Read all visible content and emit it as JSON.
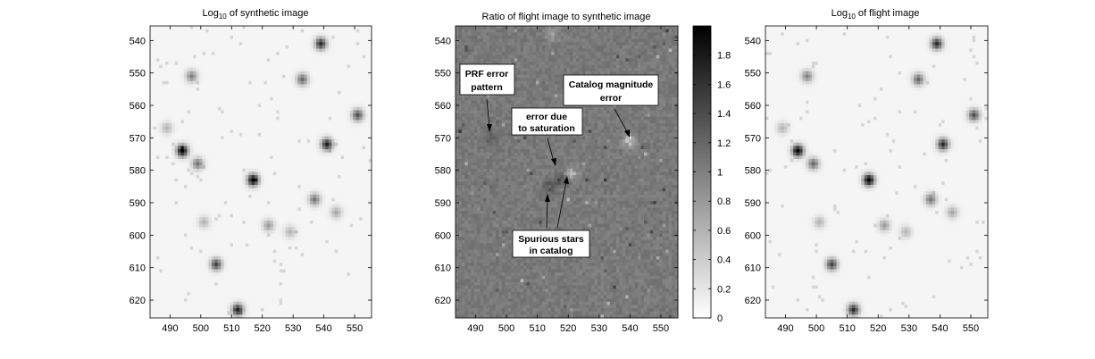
{
  "chart_data": [
    {
      "type": "heatmap",
      "title_main": "Log",
      "title_sub": "10",
      "title_rest": " of synthetic image",
      "xlim": [
        483.5,
        555.5
      ],
      "ylim": [
        535.5,
        625.5
      ],
      "y_reversed": true,
      "x_ticks": [
        "490",
        "500",
        "510",
        "520",
        "530",
        "540",
        "550"
      ],
      "y_ticks": [
        "540",
        "550",
        "560",
        "570",
        "580",
        "590",
        "600",
        "610",
        "620"
      ],
      "colormap": "gray_reversed",
      "background_level": 0.04,
      "stars": [
        {
          "x": 494,
          "y": 574,
          "peak": 1.0
        },
        {
          "x": 517,
          "y": 583,
          "peak": 1.0
        },
        {
          "x": 541,
          "y": 572,
          "peak": 0.85
        },
        {
          "x": 539,
          "y": 541,
          "peak": 0.8
        },
        {
          "x": 512,
          "y": 623,
          "peak": 0.85
        },
        {
          "x": 505,
          "y": 609,
          "peak": 0.7
        },
        {
          "x": 551,
          "y": 563,
          "peak": 0.65
        },
        {
          "x": 533,
          "y": 552,
          "peak": 0.55
        },
        {
          "x": 499,
          "y": 578,
          "peak": 0.5
        },
        {
          "x": 497,
          "y": 551,
          "peak": 0.45
        },
        {
          "x": 537,
          "y": 589,
          "peak": 0.5
        },
        {
          "x": 522,
          "y": 597,
          "peak": 0.35
        },
        {
          "x": 544,
          "y": 593,
          "peak": 0.3
        },
        {
          "x": 489,
          "y": 567,
          "peak": 0.25
        },
        {
          "x": 501,
          "y": 596,
          "peak": 0.25
        },
        {
          "x": 529,
          "y": 599,
          "peak": 0.25
        }
      ]
    },
    {
      "type": "heatmap",
      "title": "Ratio of flight image to synthetic image",
      "xlim": [
        483.5,
        555.5
      ],
      "ylim": [
        535.5,
        625.5
      ],
      "y_reversed": true,
      "x_ticks": [
        "490",
        "500",
        "510",
        "520",
        "530",
        "540",
        "550"
      ],
      "y_ticks": [
        "540",
        "550",
        "560",
        "570",
        "580",
        "590",
        "600",
        "610",
        "620"
      ],
      "colormap": "gray_reversed",
      "color_range": [
        0,
        2
      ],
      "background_value": 1.05,
      "features": [
        {
          "x": 540,
          "y": 571,
          "value": 0.45
        },
        {
          "x": 495,
          "y": 570,
          "value": 1.3
        },
        {
          "x": 518,
          "y": 583,
          "value": 1.4
        },
        {
          "x": 514,
          "y": 585,
          "value": 1.35
        },
        {
          "x": 521,
          "y": 581,
          "value": 0.6
        },
        {
          "x": 515,
          "y": 538,
          "value": 0.7
        }
      ],
      "colorbar": {
        "range": [
          0,
          2
        ],
        "ticks": [
          "0",
          "0.2",
          "0.4",
          "0.6",
          "0.8",
          "1",
          "1.2",
          "1.4",
          "1.6",
          "1.8"
        ]
      },
      "annotations": [
        {
          "lines": [
            "PRF error",
            "pattern"
          ]
        },
        {
          "lines": [
            "Catalog magnitude",
            "error"
          ]
        },
        {
          "lines": [
            "error due",
            "to saturation"
          ]
        },
        {
          "lines": [
            "Spurious stars",
            "in catalog"
          ]
        }
      ]
    },
    {
      "type": "heatmap",
      "title_main": "Log",
      "title_sub": "10",
      "title_rest": " of flight image",
      "xlim": [
        483.5,
        555.5
      ],
      "ylim": [
        535.5,
        625.5
      ],
      "y_reversed": true,
      "x_ticks": [
        "490",
        "500",
        "510",
        "520",
        "530",
        "540",
        "550"
      ],
      "y_ticks": [
        "540",
        "550",
        "560",
        "570",
        "580",
        "590",
        "600",
        "610",
        "620"
      ],
      "colormap": "gray_reversed",
      "background_level": 0.04,
      "stars": [
        {
          "x": 494,
          "y": 574,
          "peak": 1.0
        },
        {
          "x": 517,
          "y": 583,
          "peak": 1.0
        },
        {
          "x": 541,
          "y": 572,
          "peak": 0.8
        },
        {
          "x": 539,
          "y": 541,
          "peak": 0.8
        },
        {
          "x": 512,
          "y": 623,
          "peak": 0.8
        },
        {
          "x": 505,
          "y": 609,
          "peak": 0.7
        },
        {
          "x": 551,
          "y": 563,
          "peak": 0.65
        },
        {
          "x": 533,
          "y": 552,
          "peak": 0.55
        },
        {
          "x": 499,
          "y": 578,
          "peak": 0.55
        },
        {
          "x": 497,
          "y": 551,
          "peak": 0.45
        },
        {
          "x": 537,
          "y": 589,
          "peak": 0.5
        },
        {
          "x": 522,
          "y": 597,
          "peak": 0.35
        },
        {
          "x": 544,
          "y": 593,
          "peak": 0.3
        },
        {
          "x": 489,
          "y": 567,
          "peak": 0.25
        },
        {
          "x": 501,
          "y": 596,
          "peak": 0.25
        },
        {
          "x": 529,
          "y": 599,
          "peak": 0.25
        }
      ]
    }
  ]
}
